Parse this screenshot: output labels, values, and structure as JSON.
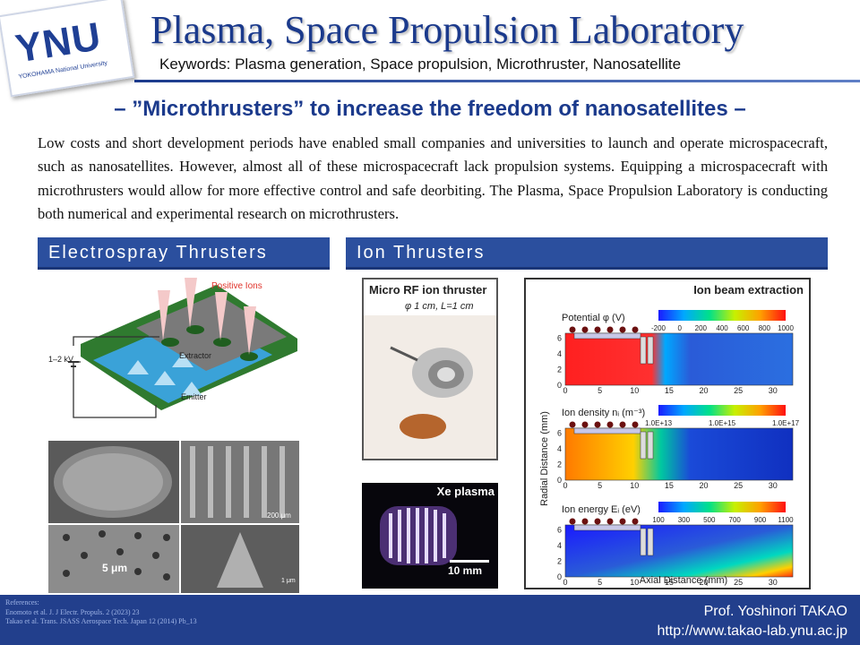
{
  "header": {
    "logo": "YNU",
    "logo_sub": "YOKOHAMA National University",
    "title": "Plasma, Space Propulsion Laboratory",
    "keywords": "Keywords: Plasma generation, Space propulsion, Microthruster, Nanosatellite"
  },
  "subtitle": "– ”Microthrusters” to increase the freedom of nanosatellites –",
  "intro": "Low costs and short development periods have enabled small companies and universities to launch and operate microspacecraft, such as nanosatellites. However, almost all of these microspacecraft lack propulsion systems. Equipping a microspacecraft with microthrusters would allow for more effective control and safe deorbiting. The Plasma, Space Propulsion Laboratory is conducting both numerical and experimental research on microthrusters.",
  "sections": {
    "electrospray": {
      "title": "Electrospray Thrusters",
      "diagram": {
        "positive_ions": "Positive Ions",
        "voltage": "1–2 kV",
        "extractor": "Extractor",
        "emitter": "Emitter"
      },
      "sem_labels": {
        "scale_200": "200 μm",
        "scale_5": "5 μm",
        "scale_1": "1 μm"
      }
    },
    "ion": {
      "title": "Ion Thrusters",
      "photo_title": "Micro RF ion thruster",
      "photo_dims": "φ 1 cm, L=1 cm",
      "xe_label": "Xe plasma",
      "xe_scale": "10 mm",
      "ibe": {
        "title": "Ion beam extraction",
        "y_axis": "Radial Distance (mm)",
        "x_axis": "Axial Distance (mm)",
        "x_ticks": [
          "0",
          "5",
          "10",
          "15",
          "20",
          "25",
          "30"
        ],
        "y_ticks": [
          "0",
          "2",
          "4",
          "6"
        ],
        "panels": [
          {
            "label": "Potential φ (V)",
            "scale": [
              "-200",
              "0",
              "200",
              "400",
              "600",
              "800",
              "1000"
            ]
          },
          {
            "label": "Ion density nᵢ (m⁻³)",
            "scale": [
              "1.0E+13",
              "1.0E+15",
              "1.0E+17"
            ]
          },
          {
            "label": "Ion energy Eᵢ (eV)",
            "scale": [
              "100",
              "300",
              "500",
              "700",
              "900",
              "1100"
            ]
          }
        ]
      }
    }
  },
  "footer": {
    "refs_title": "References:",
    "ref1": "Enomoto et al. J. J Electr. Propuls. 2 (2023) 23",
    "ref2": "Takao et al. Trans. JSASS Aerospace Tech. Japan 12 (2014) Pb_13",
    "prof": "Prof. Yoshinori TAKAO",
    "url": "http://www.takao-lab.ynu.ac.jp"
  },
  "colors": {
    "brand_blue": "#1b3a8c",
    "section_bar": "#2b4f9e",
    "footer": "#223f8c"
  }
}
